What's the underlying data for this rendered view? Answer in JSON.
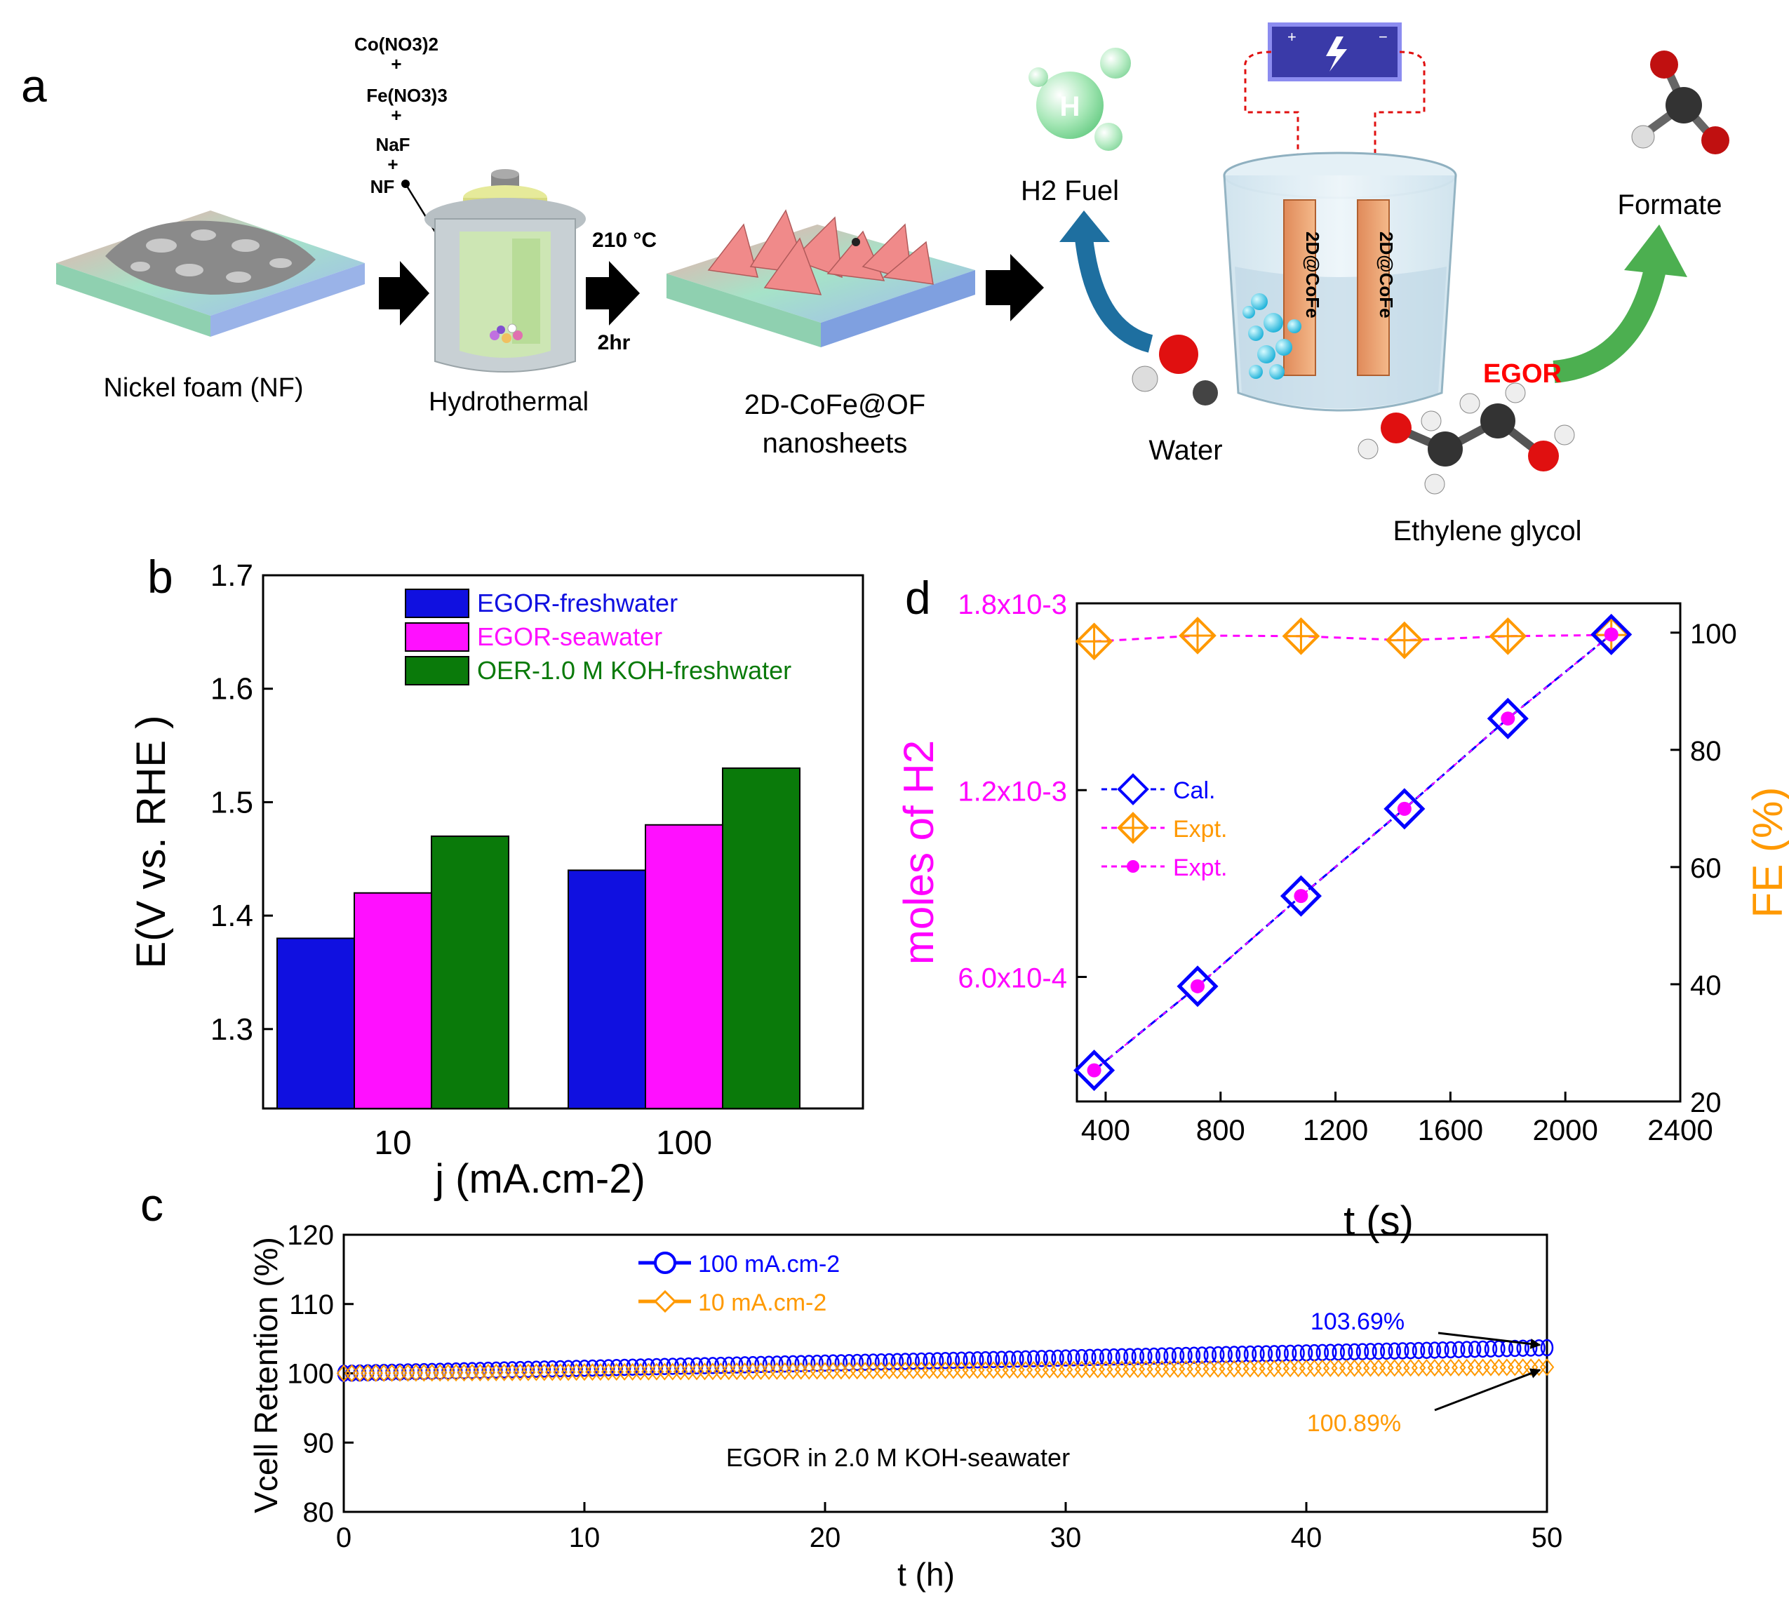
{
  "panel_labels": {
    "a": "a",
    "b": "b",
    "c": "c",
    "d": "d"
  },
  "scheme": {
    "reagents": [
      "Co(NO3)2",
      "+",
      "Fe(NO3)3",
      "+",
      "NaF",
      "+",
      "NF"
    ],
    "steps": {
      "nf": "Nickel foam (NF)",
      "hydrothermal": "Hydrothermal",
      "temperature": "210 °C",
      "time": "2hr",
      "product_line1": "2D-CoFe@OF",
      "product_line2": "nanosheets",
      "h2_fuel": "H2 Fuel",
      "water": "Water",
      "electrode": "2D@CoFe",
      "egor": "EGOR",
      "formate": "Formate",
      "ethylene_glycol": "Ethylene glycol"
    },
    "colors": {
      "arrow": "#000000",
      "blue_arrow": "#1e6fa0",
      "green_arrow": "#4caf50",
      "egor": "#ff0000",
      "battery": "#3a3aa8"
    }
  },
  "chart_data": [
    {
      "id": "b",
      "type": "bar",
      "title": "",
      "xlabel": "j (mA.cm-2)",
      "ylabel": "E(V vs. RHE )",
      "categories": [
        "10",
        "100"
      ],
      "ylim": [
        1.23,
        1.7
      ],
      "yticks": [
        "1.3",
        "1.4",
        "1.5",
        "1.6",
        "1.7"
      ],
      "legend_position": "top",
      "series": [
        {
          "name": "EGOR-freshwater",
          "color": "#1010e0",
          "values": [
            1.38,
            1.44
          ]
        },
        {
          "name": "EGOR-seawater",
          "color": "#ff10ff",
          "values": [
            1.42,
            1.48
          ]
        },
        {
          "name": "OER-1.0 M KOH-freshwater",
          "color": "#0a7a0a",
          "values": [
            1.47,
            1.53
          ]
        }
      ]
    },
    {
      "id": "d",
      "type": "line",
      "title": "",
      "xlabel": "t (s)",
      "ylabel_left": "moles of H2",
      "ylabel_right": "FE (%)",
      "xlim": [
        300,
        2400
      ],
      "xticks": [
        "400",
        "800",
        "1200",
        "1600",
        "2000",
        "2400"
      ],
      "ylim_left": [
        0.0002,
        0.0018
      ],
      "yticks_left": [
        "6.0x10-4",
        "1.2x10-3",
        "1.8x10-3"
      ],
      "ylim_right": [
        20,
        105
      ],
      "yticks_right": [
        "20",
        "40",
        "60",
        "80",
        "100"
      ],
      "legend_position": "center-left",
      "colors": {
        "left_axis": "#ff00ff",
        "right_axis": "#ff9900",
        "cal": "#0000ff"
      },
      "series": [
        {
          "name": "Cal.",
          "axis": "left",
          "x": [
            360,
            720,
            1080,
            1440,
            1800,
            2160
          ],
          "values": [
            0.0003,
            0.00057,
            0.00086,
            0.00114,
            0.00143,
            0.0017
          ]
        },
        {
          "name": "Expt.",
          "axis": "right",
          "x": [
            360,
            720,
            1080,
            1440,
            1800,
            2160
          ],
          "values": [
            98.5,
            99.5,
            99.4,
            98.7,
            99.4,
            99.6
          ]
        },
        {
          "name": "Expt.",
          "axis": "left",
          "x": [
            360,
            720,
            1080,
            1440,
            1800,
            2160
          ],
          "values": [
            0.0003,
            0.00057,
            0.00086,
            0.00114,
            0.00143,
            0.0017
          ]
        }
      ]
    },
    {
      "id": "c",
      "type": "line",
      "title": "",
      "xlabel": "t (h)",
      "ylabel": "Vcell Retention (%)",
      "xlim": [
        0,
        50
      ],
      "xticks": [
        "0",
        "10",
        "20",
        "30",
        "40",
        "50"
      ],
      "ylim": [
        80,
        120
      ],
      "yticks": [
        "80",
        "90",
        "100",
        "110",
        "120"
      ],
      "legend_position": "top-center",
      "annotation_inside": "EGOR in 2.0 M KOH-seawater",
      "series": [
        {
          "name": "100 mA.cm-2",
          "color": "#0000ff",
          "start": 100.0,
          "end": 103.69,
          "end_label": "103.69%"
        },
        {
          "name": "10 mA.cm-2",
          "color": "#ff9900",
          "start": 100.0,
          "end": 100.89,
          "end_label": "100.89%"
        }
      ]
    }
  ]
}
